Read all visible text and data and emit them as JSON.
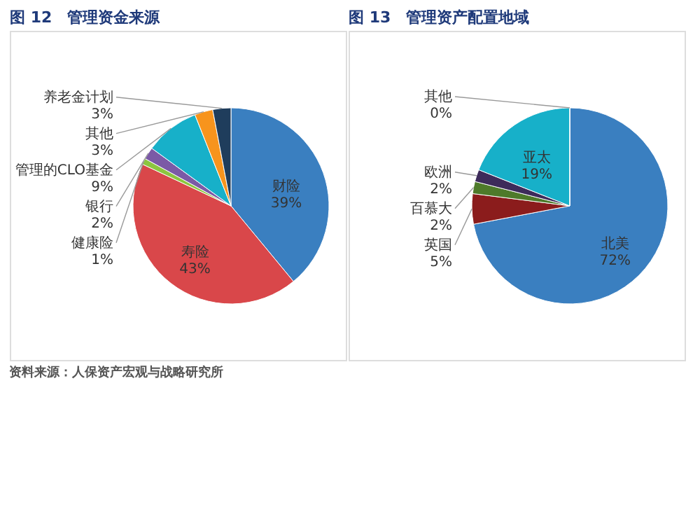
{
  "chart_data": [
    {
      "type": "pie",
      "title": "图 12　管理资金来源",
      "categories": [
        "财险",
        "寿险",
        "健康险",
        "银行",
        "管理的CLO基金",
        "其他",
        "养老金计划"
      ],
      "values": [
        39,
        43,
        1,
        2,
        9,
        3,
        3
      ],
      "value_labels": [
        "39%",
        "43%",
        "1%",
        "2%",
        "9%",
        "3%",
        "3%"
      ],
      "colors": [
        "#3a7fc0",
        "#d9474a",
        "#8cc63f",
        "#7b5aa6",
        "#17b0c9",
        "#f7941d",
        "#1f3d5c"
      ],
      "legend": false,
      "annotations": [
        "资料来源：人保资产宏观与战略研究所"
      ]
    },
    {
      "type": "pie",
      "title": "图 13　管理资产配置地域",
      "categories": [
        "北美",
        "英国",
        "百慕大",
        "欧洲",
        "亚太",
        "其他"
      ],
      "values": [
        72,
        5,
        2,
        2,
        19,
        0
      ],
      "value_labels": [
        "72%",
        "5%",
        "2%",
        "2%",
        "19%",
        "0%"
      ],
      "colors": [
        "#3a7fc0",
        "#8b1c1c",
        "#4e7a2a",
        "#3d2b5a",
        "#17b0c9",
        "#f7941d"
      ],
      "legend": false
    }
  ]
}
